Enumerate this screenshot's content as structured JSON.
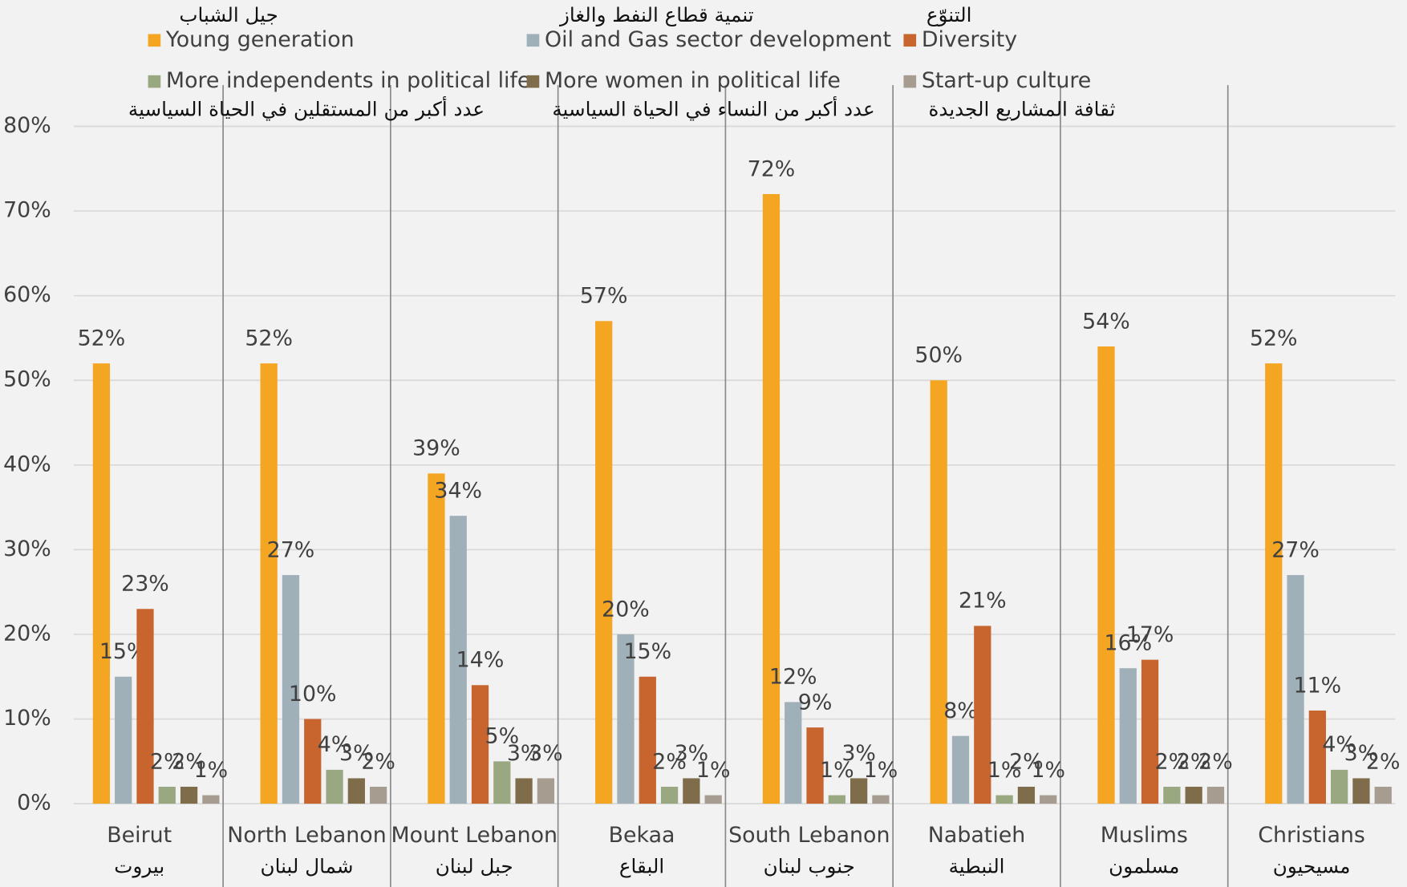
{
  "chart_data": {
    "type": "bar",
    "categories": [
      "Beirut",
      "North Lebanon",
      "Mount Lebanon",
      "Bekaa",
      "South Lebanon",
      "Nabatieh",
      "Muslims",
      "Christians"
    ],
    "categories_ar": [
      "بيروت",
      "شمال لبنان",
      "جبل لبنان",
      "البقاع",
      "جنوب لبنان",
      "النبطية",
      "مسلمون",
      "مسيحيون"
    ],
    "series": [
      {
        "name": "Young generation",
        "name_ar": "جيل الشباب",
        "color": "#f4a522",
        "values": [
          52,
          52,
          39,
          57,
          72,
          50,
          54,
          52
        ],
        "value_labels": [
          "52%",
          "52%",
          "39%",
          "57%",
          "72%",
          "50%",
          "54%",
          "52%"
        ]
      },
      {
        "name": "Oil and Gas sector development",
        "name_ar": "تنمية قطاع النفط والغاز",
        "color": "#9fb0b8",
        "values": [
          15,
          27,
          34,
          20,
          12,
          8,
          16,
          27
        ],
        "value_labels": [
          "15%",
          "27%",
          "34%",
          "20%",
          "12%",
          "8%",
          "16%",
          "27%"
        ]
      },
      {
        "name": "Diversity",
        "name_ar": "التنوّع",
        "color": "#c8642e",
        "values": [
          23,
          10,
          14,
          15,
          9,
          21,
          17,
          11
        ],
        "value_labels": [
          "23%",
          "10%",
          "14%",
          "15%",
          "9%",
          "21%",
          "17%",
          "11%"
        ]
      },
      {
        "name": "More independents in political life",
        "name_ar": "عدد أكبر من المستقلين في الحياة السياسية",
        "color": "#9aa882",
        "values": [
          2,
          4,
          5,
          2,
          1,
          1,
          2,
          4
        ],
        "value_labels": [
          "2%",
          "4%",
          "5%",
          "2%",
          "1%",
          "1%",
          "2%",
          "4%"
        ]
      },
      {
        "name": "More women in political life",
        "name_ar": "عدد أكبر من النساء في الحياة السياسية",
        "color": "#7f6c4a",
        "values": [
          2,
          3,
          3,
          3,
          3,
          2,
          2,
          3
        ],
        "value_labels": [
          "2%",
          "3%",
          "3%",
          "3%",
          "3%",
          "2%",
          "2%",
          "3%"
        ]
      },
      {
        "name": "Start-up culture",
        "name_ar": "ثقافة المشاريع الجديدة",
        "color": "#a69d90",
        "values": [
          1,
          2,
          3,
          1,
          1,
          1,
          2,
          2
        ],
        "value_labels": [
          "1%",
          "2%",
          "3%",
          "1%",
          "1%",
          "1%",
          "2%",
          "2%"
        ]
      }
    ],
    "ylim": [
      0,
      80
    ],
    "yticks": [
      {
        "value": 0,
        "label": "0%"
      },
      {
        "value": 10,
        "label": "10%"
      },
      {
        "value": 20,
        "label": "20%"
      },
      {
        "value": 30,
        "label": "30%"
      },
      {
        "value": 40,
        "label": "40%"
      },
      {
        "value": 50,
        "label": "50%"
      },
      {
        "value": 60,
        "label": "60%"
      },
      {
        "value": 70,
        "label": "70%"
      },
      {
        "value": 80,
        "label": "80%"
      }
    ],
    "grid": true,
    "legend": "top"
  }
}
